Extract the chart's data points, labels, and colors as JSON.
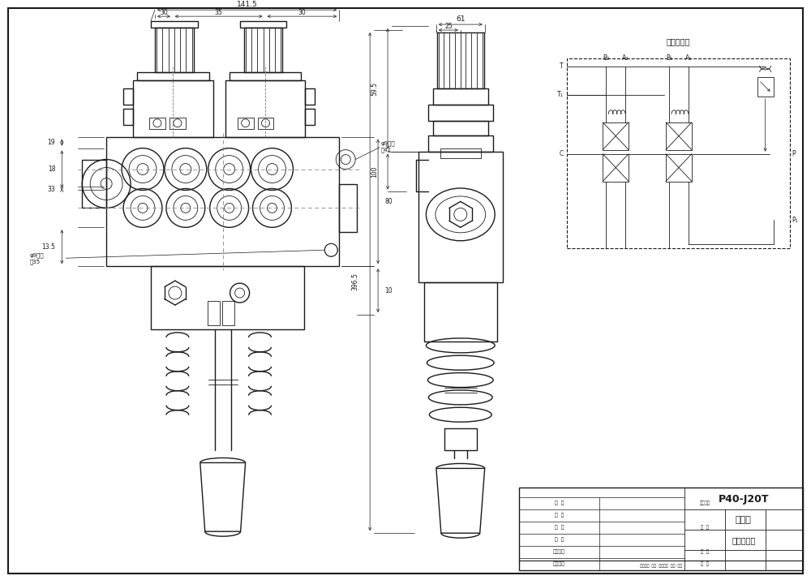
{
  "line_color": "#1a1a1a",
  "dim_color": "#1a1a1a",
  "bg_color": "#ffffff",
  "title": "P40-J20T",
  "subtitle1": "多路阀",
  "subtitle2": "外形尺寸图",
  "schematic_title": "液压原理图",
  "dim_141_5": "141.5",
  "dim_30a": "30",
  "dim_35": "35",
  "dim_30b": "30",
  "dim_19": "19",
  "dim_18": "18",
  "dim_33": "33",
  "dim_13_5": "13.5",
  "dim_80": "80",
  "dim_10": "10",
  "dim_hole1": "φ9渋孔",
  "dim_high42": "高42",
  "dim_hole2": "φ9渋孔",
  "dim_high35": "高35",
  "dim_61": "61",
  "dim_25": "25",
  "dim_59_5": "59.5",
  "dim_100": "100",
  "dim_396_5": "396.5",
  "label_T": "T",
  "label_T1": "T₁",
  "label_C": "C",
  "label_P": "P",
  "label_P1": "P₁",
  "label_B2": "B₂",
  "label_A2": "A₂",
  "label_B1": "B₁",
  "label_A1": "A₁"
}
